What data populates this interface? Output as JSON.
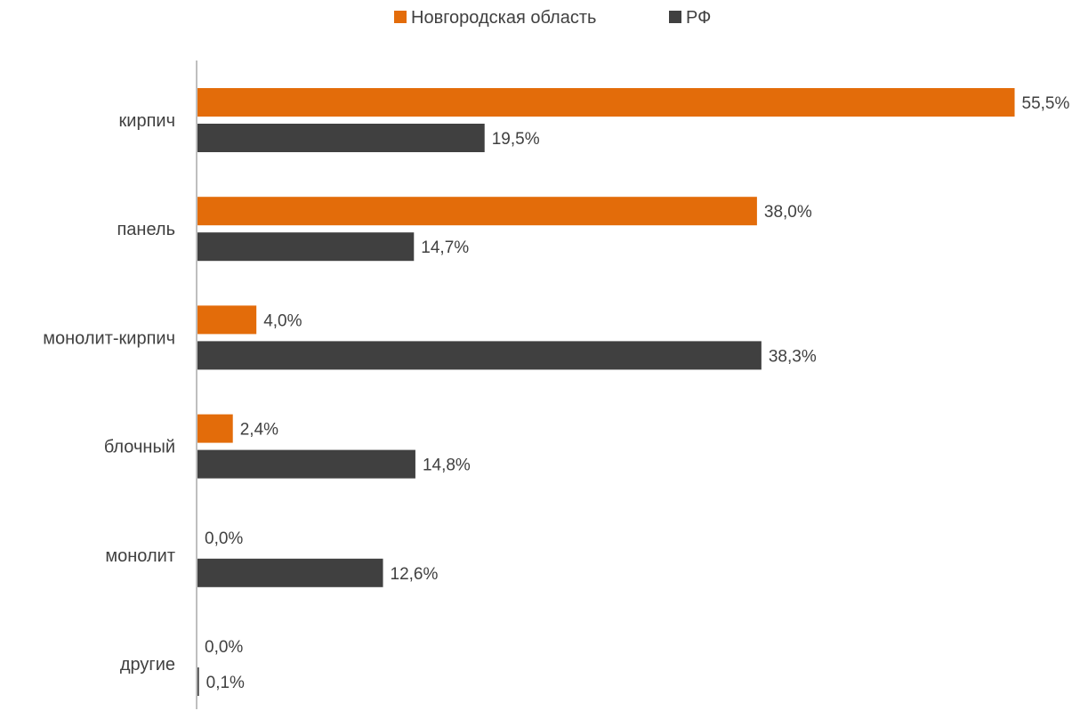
{
  "chart_data": {
    "type": "bar",
    "orientation": "horizontal",
    "categories": [
      "кирпич",
      "панель",
      "монолит-кирпич",
      "блочный",
      "монолит",
      "другие"
    ],
    "series": [
      {
        "name": "Новгородская область",
        "color": "#E36C0A",
        "values": [
          55.5,
          38.0,
          4.0,
          2.4,
          0.0,
          0.0
        ],
        "labels": [
          "55,5%",
          "38,0%",
          "4,0%",
          "2,4%",
          "0,0%",
          "0,0%"
        ]
      },
      {
        "name": "РФ",
        "color": "#404040",
        "values": [
          19.5,
          14.7,
          38.3,
          14.8,
          12.6,
          0.1
        ],
        "labels": [
          "19,5%",
          "14,7%",
          "38,3%",
          "14,8%",
          "12,6%",
          "0,1%"
        ]
      }
    ],
    "xlim": [
      0,
      56
    ],
    "grid": false,
    "legend_position": "top-center",
    "axis_color": "#BFBFBF",
    "text_color": "#404040"
  }
}
